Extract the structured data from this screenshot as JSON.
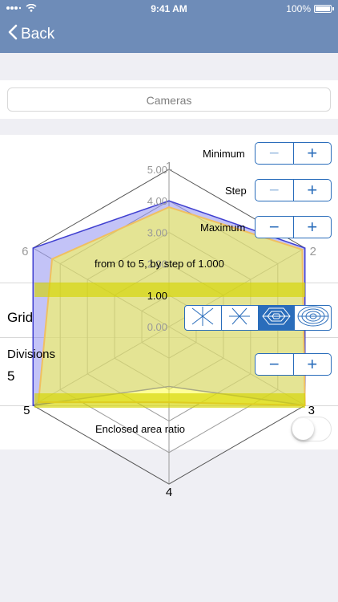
{
  "status_bar": {
    "time": "9:41 AM",
    "battery_percent": "100%"
  },
  "nav": {
    "back_label": "Back"
  },
  "cameras_label": "Cameras",
  "controls": {
    "minimum_label": "Minimum",
    "step_label": "Step",
    "maximum_label": "Maximum",
    "range_text": "from 0 to 5, by step of 1.000",
    "grid_label": "Grid",
    "divisions_label": "Divisions",
    "divisions_value": "5",
    "enclosed_area_label": "Enclosed area ratio",
    "enclosed_area_enabled": false,
    "grid_selected_index": 2
  },
  "chart_data": {
    "type": "radar",
    "axes": [
      "1",
      "2",
      "3",
      "4",
      "5",
      "6"
    ],
    "range": [
      0,
      5
    ],
    "tick_labels": [
      "0.00",
      "1.00",
      "2.00",
      "3.00",
      "4.00",
      "5.00"
    ],
    "series": [
      {
        "color": "#7a7aee",
        "values": [
          4.0,
          5.0,
          5.0,
          1.9,
          5.0,
          5.0
        ]
      },
      {
        "color": "#ffff44",
        "values": [
          3.8,
          4.9,
          5.0,
          2.4,
          4.8,
          4.3
        ]
      }
    ]
  },
  "colors": {
    "nav_bg": "#6e8cb8",
    "accent": "#2a6dbb"
  },
  "icons": {
    "signal": "signal-icon",
    "wifi": "wifi-icon",
    "battery": "battery-icon",
    "back": "chevron-left-icon",
    "grid_options": [
      "grid-none-icon",
      "grid-spokes-icon",
      "grid-polygon-icon",
      "grid-circle-icon"
    ]
  }
}
